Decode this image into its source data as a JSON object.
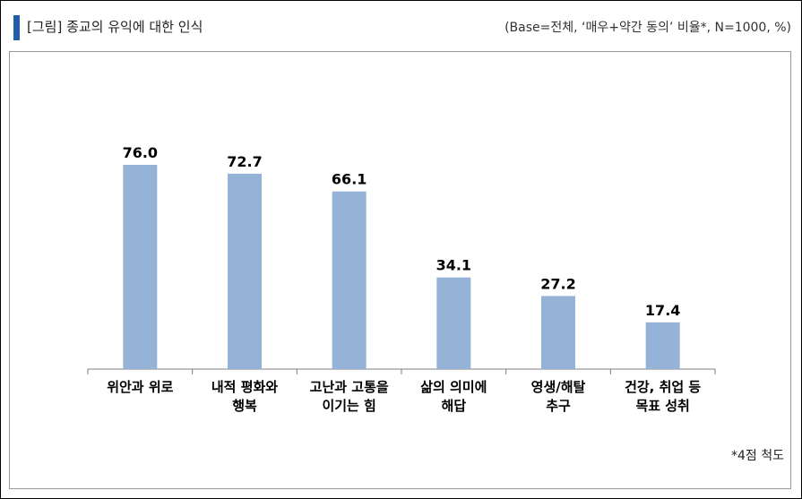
{
  "header": {
    "title": "[그림] 종교의 유익에 대한 인식",
    "base_note": "(Base=전체, ‘매우+약간 동의’ 비율*, N=1000, %)"
  },
  "footnote": "*4점 척도",
  "colors": {
    "accent": "#1f5fa8",
    "bar": "#95b3d7",
    "axis": "#7f7f7f"
  },
  "chart_data": {
    "type": "bar",
    "categories": [
      [
        "위안과 위로"
      ],
      [
        "내적 평화와",
        "행복"
      ],
      [
        "고난과 고통을",
        "이기는 힘"
      ],
      [
        "삶의 의미에",
        "해답"
      ],
      [
        "영생/해탈",
        "추구"
      ],
      [
        "건강, 취업 등",
        "목표 성취"
      ]
    ],
    "values": [
      76.0,
      72.7,
      66.1,
      34.1,
      27.2,
      17.4
    ],
    "value_labels": [
      "76.0",
      "72.7",
      "66.1",
      "34.1",
      "27.2",
      "17.4"
    ],
    "ylim": [
      0,
      100
    ],
    "grid": false,
    "legend": "none"
  }
}
